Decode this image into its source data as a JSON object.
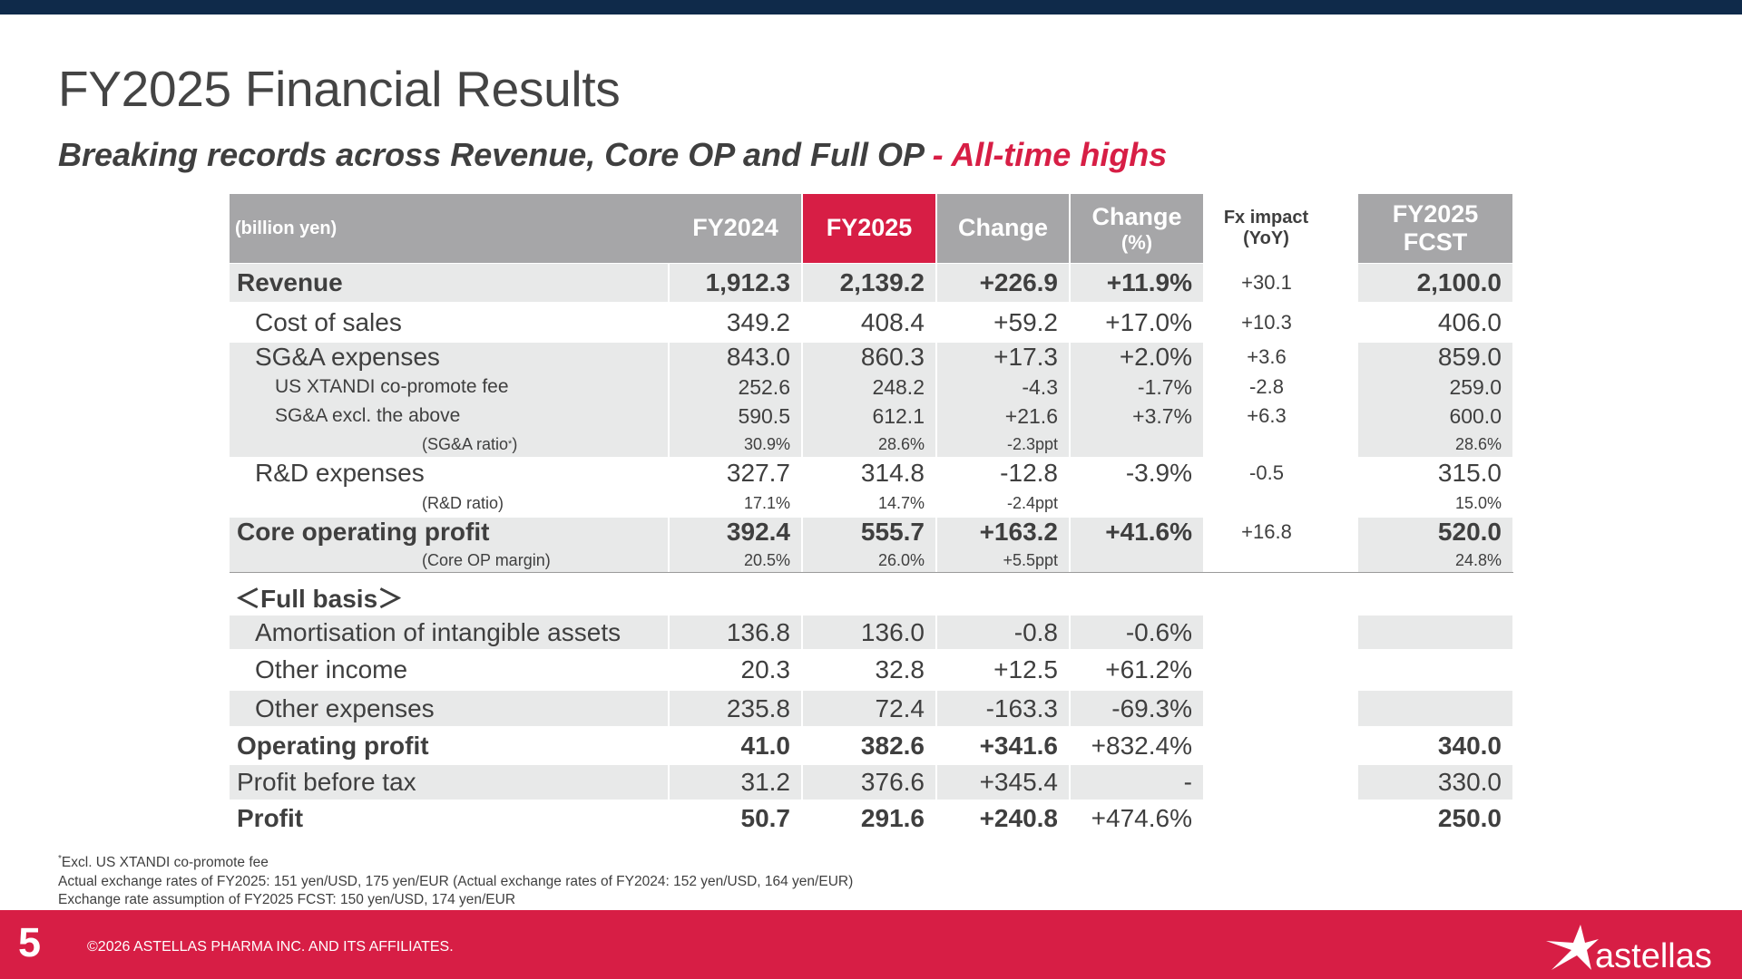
{
  "header": {
    "title": "FY2025 Financial Results",
    "subtitle_main": "Breaking records across Revenue, Core OP and Full OP",
    "subtitle_highlight": " - All-time highs"
  },
  "colors": {
    "accent_red": "#d71e45",
    "header_gray": "#a6a6a8",
    "navy": "#0f2a4a",
    "row_shade": "#e8e9e9"
  },
  "table": {
    "columns": {
      "unit": "(billion yen)",
      "fy2024": "FY2024",
      "fy2025": "FY2025",
      "change": "Change",
      "change_pct_1": "Change",
      "change_pct_2": "(%)",
      "fx_1": "Fx impact",
      "fx_2": "(YoY)",
      "fcst_1": "FY2025",
      "fcst_2": "FCST"
    },
    "rows": [
      {
        "label": "Revenue",
        "fy2024": "1,912.3",
        "fy2025": "2,139.2",
        "change": "+226.9",
        "change_pct": "+11.9%",
        "fx": "+30.1",
        "fcst": "2,100.0"
      },
      {
        "label": "Cost of sales",
        "fy2024": "349.2",
        "fy2025": "408.4",
        "change": "+59.2",
        "change_pct": "+17.0%",
        "fx": "+10.3",
        "fcst": "406.0"
      },
      {
        "label": "SG&A expenses",
        "fy2024": "843.0",
        "fy2025": "860.3",
        "change": "+17.3",
        "change_pct": "+2.0%",
        "fx": "+3.6",
        "fcst": "859.0"
      },
      {
        "label": "US XTANDI co-promote fee",
        "fy2024": "252.6",
        "fy2025": "248.2",
        "change": "-4.3",
        "change_pct": "-1.7%",
        "fx": "-2.8",
        "fcst": "259.0"
      },
      {
        "label": "SG&A excl. the above",
        "fy2024": "590.5",
        "fy2025": "612.1",
        "change": "+21.6",
        "change_pct": "+3.7%",
        "fx": "+6.3",
        "fcst": "600.0"
      },
      {
        "label": "(SG&A ratio",
        "label_sup": "*",
        "label_end": ")",
        "fy2024": "30.9%",
        "fy2025": "28.6%",
        "change": "-2.3ppt",
        "change_pct": "",
        "fx": "",
        "fcst": "28.6%"
      },
      {
        "label": "R&D expenses",
        "fy2024": "327.7",
        "fy2025": "314.8",
        "change": "-12.8",
        "change_pct": "-3.9%",
        "fx": "-0.5",
        "fcst": "315.0"
      },
      {
        "label": "(R&D ratio)",
        "fy2024": "17.1%",
        "fy2025": "14.7%",
        "change": "-2.4ppt",
        "change_pct": "",
        "fx": "",
        "fcst": "15.0%"
      },
      {
        "label": "Core operating profit",
        "fy2024": "392.4",
        "fy2025": "555.7",
        "change": "+163.2",
        "change_pct": "+41.6%",
        "fx": "+16.8",
        "fcst": "520.0"
      },
      {
        "label": "(Core OP margin)",
        "fy2024": "20.5%",
        "fy2025": "26.0%",
        "change": "+5.5ppt",
        "change_pct": "",
        "fx": "",
        "fcst": "24.8%"
      },
      {
        "label": "＜Full basis＞",
        "fy2024": "",
        "fy2025": "",
        "change": "",
        "change_pct": "",
        "fx": "",
        "fcst": ""
      },
      {
        "label": "Amortisation of intangible assets",
        "fy2024": "136.8",
        "fy2025": "136.0",
        "change": "-0.8",
        "change_pct": "-0.6%",
        "fx": "",
        "fcst": ""
      },
      {
        "label": "Other income",
        "fy2024": "20.3",
        "fy2025": "32.8",
        "change": "+12.5",
        "change_pct": "+61.2%",
        "fx": "",
        "fcst": ""
      },
      {
        "label": "Other expenses",
        "fy2024": "235.8",
        "fy2025": "72.4",
        "change": "-163.3",
        "change_pct": "-69.3%",
        "fx": "",
        "fcst": ""
      },
      {
        "label": "Operating profit",
        "fy2024": "41.0",
        "fy2025": "382.6",
        "change": "+341.6",
        "change_pct": "+832.4%",
        "fx": "",
        "fcst": "340.0"
      },
      {
        "label": "Profit before tax",
        "fy2024": "31.2",
        "fy2025": "376.6",
        "change": "+345.4",
        "change_pct": "-",
        "fx": "",
        "fcst": "330.0"
      },
      {
        "label": "Profit",
        "fy2024": "50.7",
        "fy2025": "291.6",
        "change": "+240.8",
        "change_pct": "+474.6%",
        "fx": "",
        "fcst": "250.0"
      }
    ]
  },
  "notes": {
    "line1_sup": "*",
    "line1": "Excl. US XTANDI co-promote fee",
    "line2": "Actual exchange rates of FY2025: 151 yen/USD, 175 yen/EUR (Actual exchange rates of FY2024: 152 yen/USD, 164 yen/EUR)",
    "line3": "Exchange rate assumption of FY2025 FCST: 150 yen/USD, 174 yen/EUR"
  },
  "footer": {
    "page_number": "5",
    "copyright": "©2026 ASTELLAS PHARMA INC. AND ITS AFFILIATES.",
    "logo_text": "astellas",
    "logo_icon": "astellas-star-icon"
  }
}
